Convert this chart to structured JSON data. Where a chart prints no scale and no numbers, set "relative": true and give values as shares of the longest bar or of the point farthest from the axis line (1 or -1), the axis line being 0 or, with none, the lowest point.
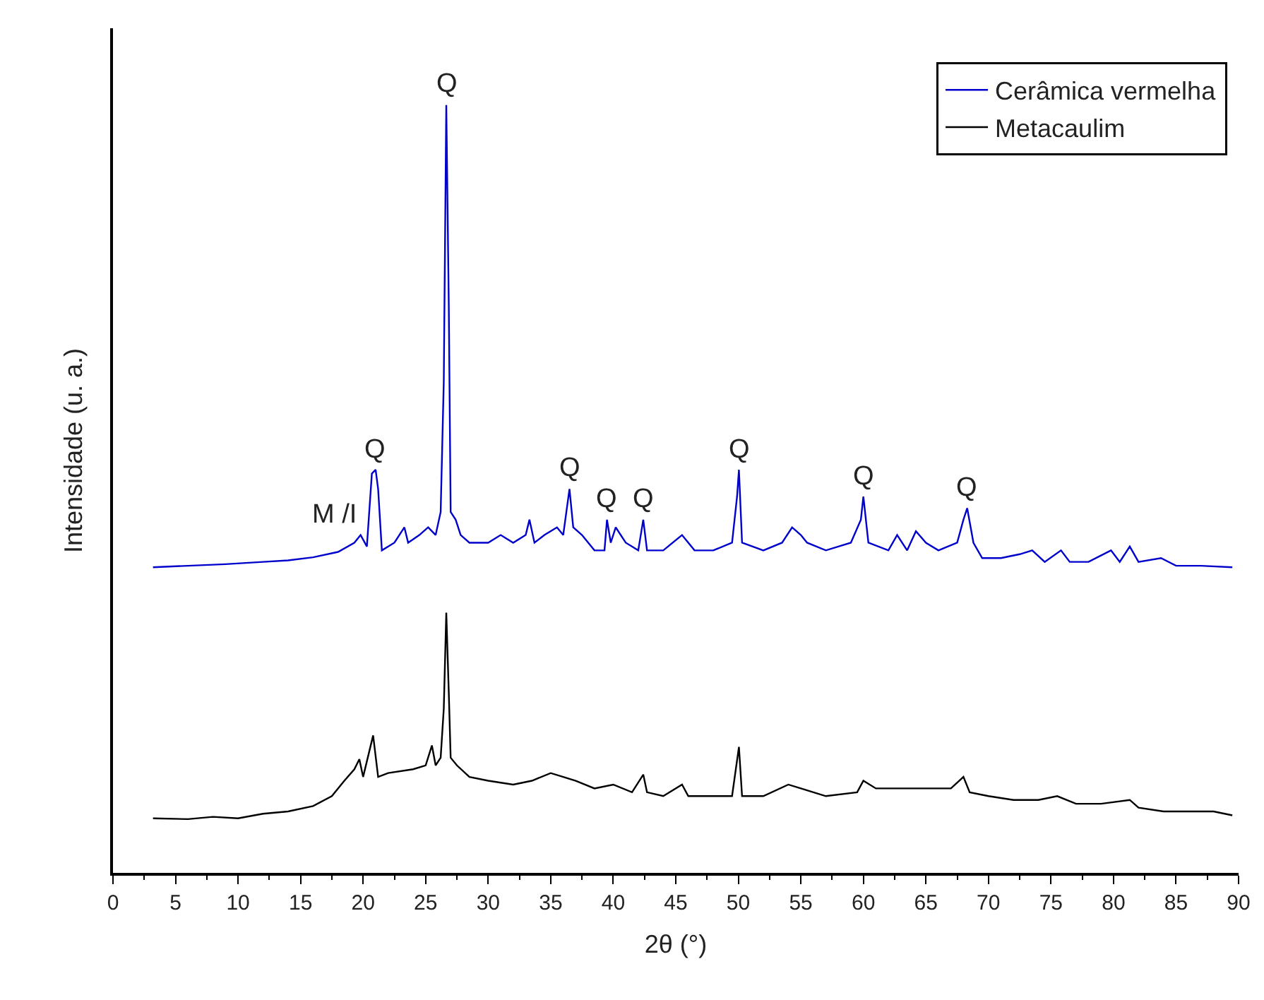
{
  "chart_data": {
    "type": "line",
    "relative": true,
    "xlabel": "2θ (°)",
    "ylabel": "Intensidade (u. a.)",
    "xlim": [
      0,
      90
    ],
    "xticks": [
      0,
      5,
      10,
      15,
      20,
      25,
      30,
      35,
      40,
      45,
      50,
      55,
      60,
      65,
      70,
      75,
      80,
      85,
      90
    ],
    "legend": "top right",
    "marker": "none",
    "line_style": "solid",
    "series": [
      {
        "name": "Cerâmica vermelha",
        "color": "#0000cc",
        "x": [
          3.2,
          6,
          9,
          12,
          14,
          16,
          18,
          19.3,
          19.8,
          20.3,
          20.7,
          21.0,
          21.2,
          21.5,
          22.5,
          23.3,
          23.6,
          24.5,
          25.2,
          25.8,
          26.2,
          26.45,
          26.65,
          26.85,
          27.0,
          27.4,
          27.8,
          28.5,
          30,
          31,
          32,
          33.0,
          33.3,
          33.7,
          34.5,
          35.5,
          36.0,
          36.5,
          36.8,
          37.5,
          38.5,
          39.3,
          39.5,
          39.8,
          40.2,
          41,
          42,
          42.4,
          42.7,
          44,
          45.5,
          46.5,
          48,
          49.5,
          49.9,
          50.05,
          50.3,
          52,
          53.5,
          54.3,
          55,
          55.5,
          57,
          59,
          59.8,
          60.0,
          60.4,
          62,
          62.7,
          63.5,
          64.2,
          65,
          66,
          67.5,
          68.0,
          68.3,
          68.8,
          69.5,
          71,
          72.5,
          73.5,
          74.5,
          75.8,
          76.5,
          78,
          79.8,
          80.5,
          81.3,
          82,
          83.8,
          85,
          87,
          89.5
        ],
        "values": [
          0.398,
          0.4,
          0.402,
          0.405,
          0.407,
          0.411,
          0.418,
          0.43,
          0.44,
          0.425,
          0.52,
          0.525,
          0.5,
          0.42,
          0.43,
          0.45,
          0.43,
          0.44,
          0.45,
          0.44,
          0.47,
          0.64,
          1.0,
          0.74,
          0.47,
          0.46,
          0.44,
          0.43,
          0.43,
          0.44,
          0.43,
          0.44,
          0.46,
          0.43,
          0.44,
          0.45,
          0.44,
          0.5,
          0.45,
          0.44,
          0.42,
          0.42,
          0.46,
          0.43,
          0.45,
          0.43,
          0.42,
          0.46,
          0.42,
          0.42,
          0.44,
          0.42,
          0.42,
          0.43,
          0.49,
          0.525,
          0.43,
          0.42,
          0.43,
          0.45,
          0.44,
          0.43,
          0.42,
          0.43,
          0.46,
          0.49,
          0.43,
          0.42,
          0.44,
          0.42,
          0.445,
          0.43,
          0.42,
          0.43,
          0.46,
          0.475,
          0.43,
          0.41,
          0.41,
          0.415,
          0.42,
          0.405,
          0.42,
          0.405,
          0.405,
          0.42,
          0.405,
          0.425,
          0.405,
          0.41,
          0.4,
          0.4,
          0.398
        ]
      },
      {
        "name": "Metacaulim",
        "color": "#000000",
        "x": [
          3.2,
          6,
          8,
          10,
          12,
          14,
          16,
          17.5,
          18.5,
          19.3,
          19.7,
          20.0,
          20.8,
          21.2,
          22,
          24,
          25.0,
          25.5,
          25.8,
          26.2,
          26.45,
          26.65,
          26.85,
          27.0,
          27.5,
          28.5,
          30,
          32,
          33.5,
          35,
          36,
          37,
          38.5,
          40,
          41.5,
          42.4,
          42.7,
          44,
          45.5,
          46,
          48,
          49.5,
          50.05,
          50.3,
          52,
          54,
          55,
          57,
          59.5,
          60.0,
          61,
          63,
          65,
          67,
          68.0,
          68.5,
          70,
          72,
          74,
          75.5,
          77,
          79,
          81.3,
          82,
          84,
          86,
          88,
          89.5
        ],
        "values": [
          0.071,
          0.07,
          0.073,
          0.071,
          0.077,
          0.08,
          0.087,
          0.1,
          0.12,
          0.135,
          0.148,
          0.125,
          0.179,
          0.125,
          0.13,
          0.135,
          0.14,
          0.166,
          0.14,
          0.15,
          0.214,
          0.339,
          0.235,
          0.15,
          0.14,
          0.125,
          0.12,
          0.115,
          0.12,
          0.13,
          0.125,
          0.12,
          0.11,
          0.115,
          0.105,
          0.128,
          0.105,
          0.1,
          0.115,
          0.1,
          0.1,
          0.1,
          0.164,
          0.1,
          0.1,
          0.115,
          0.11,
          0.1,
          0.105,
          0.12,
          0.11,
          0.11,
          0.11,
          0.11,
          0.125,
          0.105,
          0.1,
          0.095,
          0.095,
          0.1,
          0.09,
          0.09,
          0.095,
          0.085,
          0.08,
          0.08,
          0.08,
          0.075
        ]
      }
    ],
    "annotations": [
      {
        "text": "M /I",
        "x": 19.8,
        "y": 0.44
      },
      {
        "text": "Q",
        "x": 21.0,
        "y": 0.525
      },
      {
        "text": "Q",
        "x": 26.65,
        "y": 1.0
      },
      {
        "text": "Q",
        "x": 36.5,
        "y": 0.5
      },
      {
        "text": "Q",
        "x": 39.5,
        "y": 0.46
      },
      {
        "text": "Q",
        "x": 42.4,
        "y": 0.46
      },
      {
        "text": "Q",
        "x": 50.05,
        "y": 0.525
      },
      {
        "text": "Q",
        "x": 60.0,
        "y": 0.49
      },
      {
        "text": "Q",
        "x": 68.3,
        "y": 0.475
      }
    ]
  }
}
